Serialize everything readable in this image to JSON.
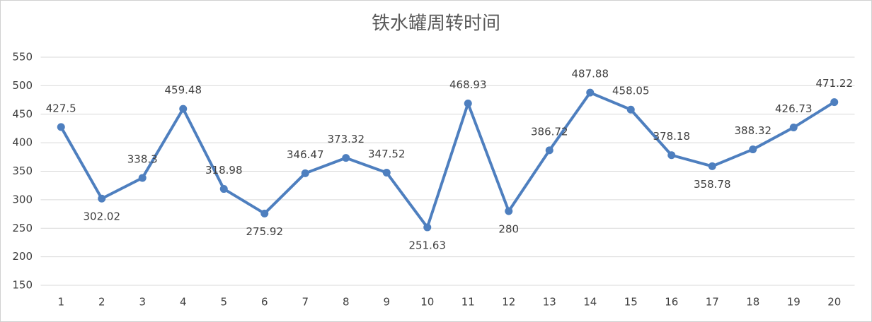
{
  "chart_data": {
    "type": "line",
    "title": "铁水罐周转时间",
    "categories": [
      "1",
      "2",
      "3",
      "4",
      "5",
      "6",
      "7",
      "8",
      "9",
      "10",
      "11",
      "12",
      "13",
      "14",
      "15",
      "16",
      "17",
      "18",
      "19",
      "20"
    ],
    "series": [
      {
        "name": "铁水罐周转时间",
        "color": "#4e7fbf",
        "values": [
          427.5,
          302.02,
          338.3,
          459.48,
          318.98,
          275.92,
          346.47,
          373.32,
          347.52,
          251.63,
          468.93,
          280,
          386.72,
          487.88,
          458.05,
          378.18,
          358.78,
          388.32,
          426.73,
          471.22
        ]
      }
    ],
    "ylim": [
      150,
      550
    ],
    "yticks": [
      150,
      200,
      250,
      300,
      350,
      400,
      450,
      500,
      550
    ],
    "grid": true
  }
}
